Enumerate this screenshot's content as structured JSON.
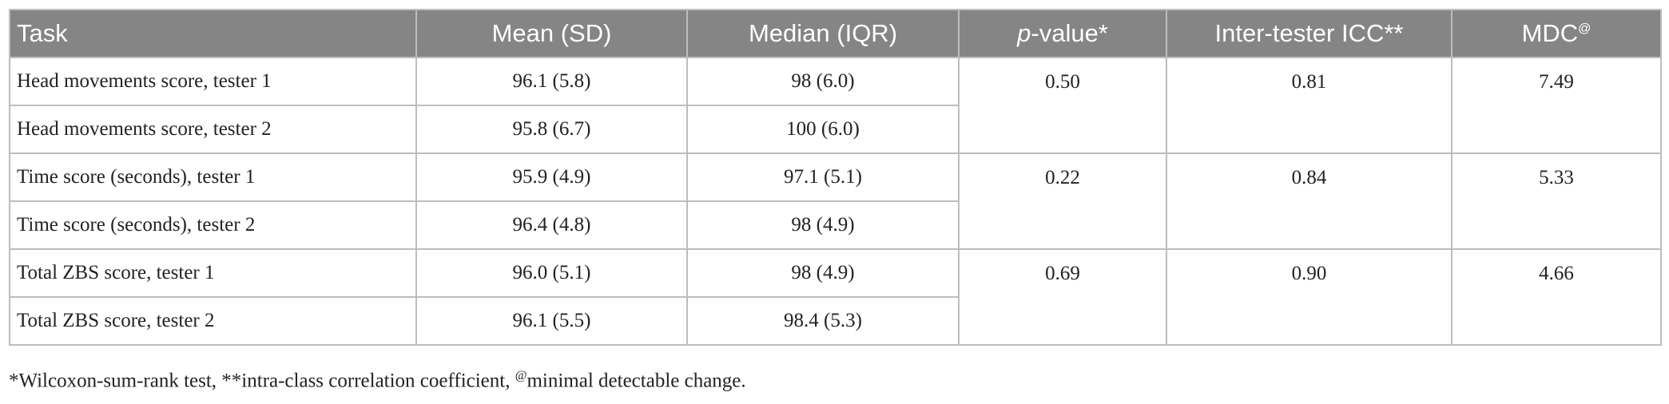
{
  "header": {
    "columns": [
      "Task",
      "Mean (SD)",
      "Median (IQR)",
      {
        "italic": "p",
        "text": "-value*"
      },
      "Inter-tester ICC**",
      {
        "text": "MDC",
        "sup": "@"
      }
    ]
  },
  "groups": [
    {
      "rows": [
        [
          "Head movements score, tester 1",
          "96.1 (5.8)",
          "98 (6.0)"
        ],
        [
          "Head movements score, tester 2",
          "95.8 (6.7)",
          "100 (6.0)"
        ]
      ],
      "p_value": "0.50",
      "icc": "0.81",
      "mdc": "7.49"
    },
    {
      "rows": [
        [
          "Time score (seconds), tester 1",
          "95.9 (4.9)",
          "97.1 (5.1)"
        ],
        [
          "Time score (seconds), tester 2",
          "96.4 (4.8)",
          "98 (4.9)"
        ]
      ],
      "p_value": "0.22",
      "icc": "0.84",
      "mdc": "5.33"
    },
    {
      "rows": [
        [
          "Total ZBS score, tester 1",
          "96.0 (5.1)",
          "98 (4.9)"
        ],
        [
          "Total ZBS score, tester 2",
          "96.1 (5.5)",
          "98.4 (5.3)"
        ]
      ],
      "p_value": "0.69",
      "icc": "0.90",
      "mdc": "4.66"
    }
  ],
  "footnote": {
    "part1": "*Wilcoxon-sum-rank test, **intra-class correlation coefficient, ",
    "sup": "@",
    "part2": "minimal detectable change."
  }
}
